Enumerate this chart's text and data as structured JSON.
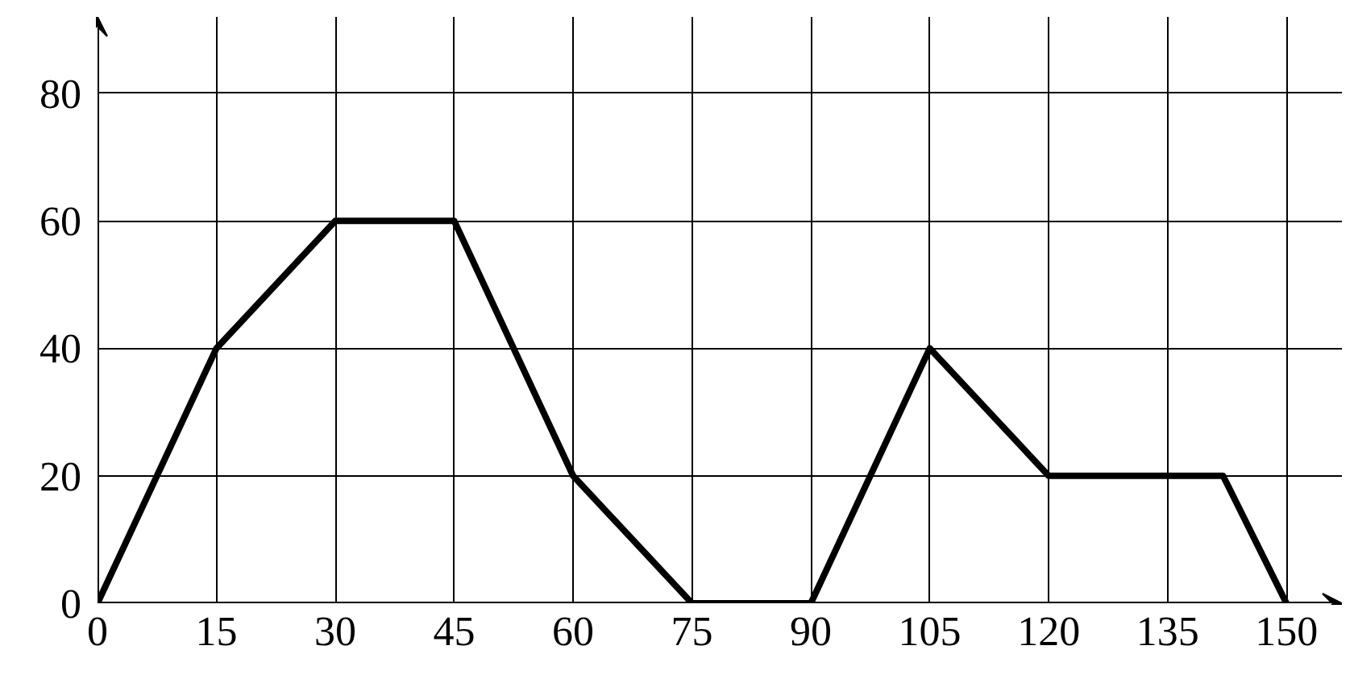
{
  "chart_data": {
    "type": "line",
    "x": [
      0,
      15,
      30,
      45,
      60,
      75,
      90,
      105,
      120,
      142,
      150
    ],
    "values": [
      0,
      40,
      60,
      60,
      20,
      0,
      0,
      40,
      20,
      20,
      0
    ],
    "color": "#000000",
    "xlim": [
      0,
      157
    ],
    "ylim": [
      0,
      92
    ],
    "xticks": [
      0,
      15,
      30,
      45,
      60,
      75,
      90,
      105,
      120,
      135,
      150
    ],
    "yticks": [
      0,
      20,
      40,
      60,
      80
    ],
    "grid": true,
    "marker": "none",
    "line_style": "solid"
  }
}
